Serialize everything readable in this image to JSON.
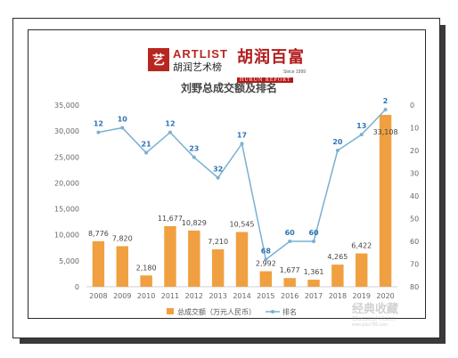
{
  "logos": {
    "artlist_seal": "艺",
    "artlist_en": "ARTLIST",
    "artlist_cn": "胡润艺术榜",
    "hurun_cn": "胡润百富",
    "hurun_en": "HURUN REPORT",
    "hurun_since": "Since 1999"
  },
  "watermark": {
    "cn": "经典收藏",
    "en": "Classical Vision",
    "url": "www.jdsc766.com"
  },
  "chart_data": {
    "type": "bar",
    "title": "刘野总成交额及排名",
    "categories": [
      "2008",
      "2009",
      "2010",
      "2011",
      "2012",
      "2013",
      "2014",
      "2015",
      "2016",
      "2017",
      "2018",
      "2019",
      "2020"
    ],
    "series": [
      {
        "name": "总成交额（万元人民币）",
        "type": "bar",
        "axis": "left",
        "values": [
          8776,
          7820,
          2180,
          11677,
          10829,
          7210,
          10545,
          2992,
          1677,
          1361,
          4265,
          6422,
          33108
        ],
        "labels": [
          "8,776",
          "7,820",
          "2,180",
          "11,677",
          "10,829",
          "7,210",
          "10,545",
          "2,992",
          "1,677",
          "1,361",
          "4,265",
          "6,422",
          "33,108"
        ],
        "color": "#f0a040"
      },
      {
        "name": "排名",
        "type": "line",
        "axis": "right",
        "values": [
          12,
          10,
          21,
          12,
          23,
          32,
          17,
          68,
          60,
          60,
          20,
          13,
          2
        ],
        "labels": [
          "12",
          "10",
          "21",
          "12",
          "23",
          "32",
          "17",
          "68",
          "60",
          "60",
          "20",
          "13",
          "2"
        ],
        "color": "#7ab0d2",
        "label_color": "#2e74b5"
      }
    ],
    "left_axis": {
      "range": [
        0,
        35000
      ],
      "ticks": [
        "0",
        "5,000",
        "10,000",
        "15,000",
        "20,000",
        "25,000",
        "30,000",
        "35,000"
      ],
      "tick_values": [
        0,
        5000,
        10000,
        15000,
        20000,
        25000,
        30000,
        35000
      ]
    },
    "right_axis": {
      "range": [
        0,
        80
      ],
      "inverted": true,
      "ticks": [
        "0",
        "10",
        "20",
        "30",
        "40",
        "50",
        "60",
        "70",
        "80"
      ],
      "tick_values": [
        0,
        10,
        20,
        30,
        40,
        50,
        60,
        70,
        80
      ]
    },
    "legend": {
      "placement": "bottom",
      "bar_label": "总成交额（万元人民币）",
      "line_label": "排名"
    },
    "grid": false
  }
}
